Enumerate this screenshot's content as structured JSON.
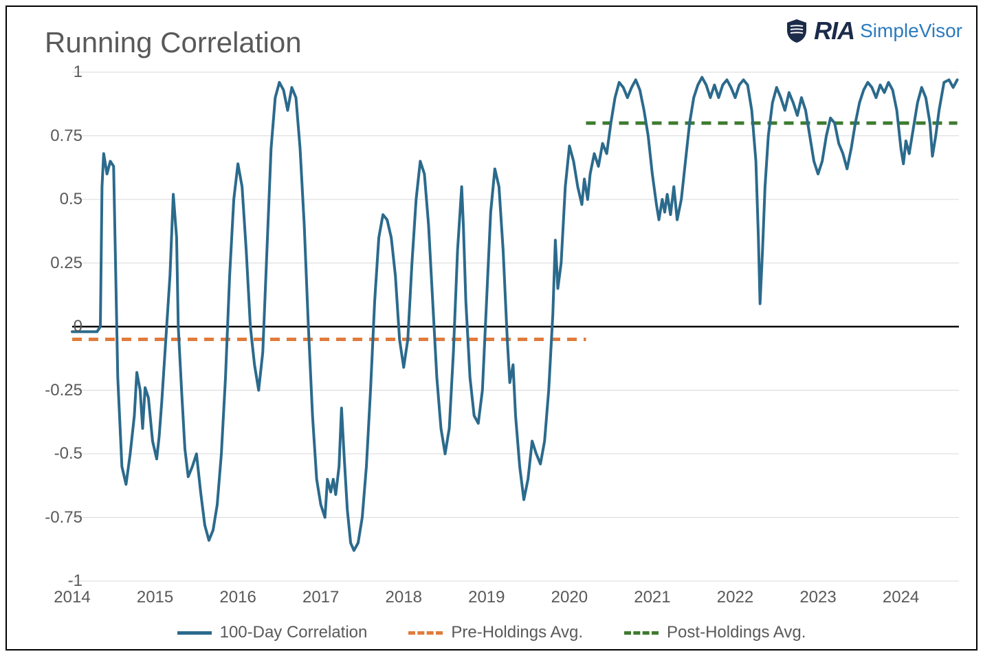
{
  "title": "Running Correlation",
  "logo": {
    "ria": "RIA",
    "simplevisor": "SimpleVisor"
  },
  "chart": {
    "type": "line",
    "background_color": "#ffffff",
    "grid_color": "#d9d9d9",
    "axis_label_color": "#595959",
    "axis_label_fontsize": 24,
    "title_fontsize": 42,
    "ylim": [
      -1,
      1
    ],
    "ytick_step": 0.25,
    "yticks": [
      1,
      0.75,
      0.5,
      0.25,
      0,
      -0.25,
      -0.5,
      -0.75,
      -1
    ],
    "xlim_years": [
      2014,
      2024.7
    ],
    "xticks": [
      2014,
      2015,
      2016,
      2017,
      2018,
      2019,
      2020,
      2021,
      2022,
      2023,
      2024
    ],
    "zero_line_color": "#000000",
    "zero_line_width": 2.5,
    "series": {
      "correlation": {
        "label": "100-Day Correlation",
        "color": "#2b6a8c",
        "line_width": 4,
        "data": [
          [
            2014.0,
            -0.02
          ],
          [
            2014.3,
            -0.02
          ],
          [
            2014.34,
            0.0
          ],
          [
            2014.36,
            0.55
          ],
          [
            2014.38,
            0.68
          ],
          [
            2014.42,
            0.6
          ],
          [
            2014.46,
            0.65
          ],
          [
            2014.5,
            0.63
          ],
          [
            2014.52,
            0.3
          ],
          [
            2014.55,
            -0.2
          ],
          [
            2014.6,
            -0.55
          ],
          [
            2014.65,
            -0.62
          ],
          [
            2014.7,
            -0.5
          ],
          [
            2014.75,
            -0.35
          ],
          [
            2014.78,
            -0.18
          ],
          [
            2014.82,
            -0.25
          ],
          [
            2014.85,
            -0.4
          ],
          [
            2014.88,
            -0.24
          ],
          [
            2014.92,
            -0.28
          ],
          [
            2014.97,
            -0.45
          ],
          [
            2015.02,
            -0.52
          ],
          [
            2015.05,
            -0.43
          ],
          [
            2015.08,
            -0.3
          ],
          [
            2015.12,
            -0.1
          ],
          [
            2015.18,
            0.2
          ],
          [
            2015.22,
            0.52
          ],
          [
            2015.26,
            0.35
          ],
          [
            2015.28,
            0.0
          ],
          [
            2015.32,
            -0.25
          ],
          [
            2015.36,
            -0.48
          ],
          [
            2015.4,
            -0.59
          ],
          [
            2015.45,
            -0.55
          ],
          [
            2015.5,
            -0.5
          ],
          [
            2015.55,
            -0.65
          ],
          [
            2015.6,
            -0.78
          ],
          [
            2015.65,
            -0.84
          ],
          [
            2015.7,
            -0.8
          ],
          [
            2015.75,
            -0.7
          ],
          [
            2015.8,
            -0.5
          ],
          [
            2015.85,
            -0.2
          ],
          [
            2015.9,
            0.2
          ],
          [
            2015.95,
            0.5
          ],
          [
            2016.0,
            0.64
          ],
          [
            2016.05,
            0.55
          ],
          [
            2016.1,
            0.3
          ],
          [
            2016.15,
            0.0
          ],
          [
            2016.2,
            -0.15
          ],
          [
            2016.25,
            -0.25
          ],
          [
            2016.3,
            -0.1
          ],
          [
            2016.35,
            0.3
          ],
          [
            2016.4,
            0.7
          ],
          [
            2016.45,
            0.9
          ],
          [
            2016.5,
            0.96
          ],
          [
            2016.55,
            0.93
          ],
          [
            2016.6,
            0.85
          ],
          [
            2016.65,
            0.94
          ],
          [
            2016.7,
            0.9
          ],
          [
            2016.75,
            0.7
          ],
          [
            2016.8,
            0.4
          ],
          [
            2016.85,
            0.0
          ],
          [
            2016.9,
            -0.35
          ],
          [
            2016.95,
            -0.6
          ],
          [
            2017.0,
            -0.7
          ],
          [
            2017.05,
            -0.75
          ],
          [
            2017.08,
            -0.6
          ],
          [
            2017.12,
            -0.65
          ],
          [
            2017.15,
            -0.6
          ],
          [
            2017.18,
            -0.66
          ],
          [
            2017.22,
            -0.55
          ],
          [
            2017.25,
            -0.32
          ],
          [
            2017.28,
            -0.5
          ],
          [
            2017.32,
            -0.72
          ],
          [
            2017.36,
            -0.85
          ],
          [
            2017.4,
            -0.88
          ],
          [
            2017.45,
            -0.85
          ],
          [
            2017.5,
            -0.75
          ],
          [
            2017.55,
            -0.55
          ],
          [
            2017.6,
            -0.25
          ],
          [
            2017.65,
            0.1
          ],
          [
            2017.7,
            0.35
          ],
          [
            2017.75,
            0.44
          ],
          [
            2017.8,
            0.42
          ],
          [
            2017.85,
            0.35
          ],
          [
            2017.9,
            0.2
          ],
          [
            2017.95,
            -0.05
          ],
          [
            2018.0,
            -0.16
          ],
          [
            2018.05,
            -0.05
          ],
          [
            2018.1,
            0.25
          ],
          [
            2018.15,
            0.5
          ],
          [
            2018.2,
            0.65
          ],
          [
            2018.25,
            0.6
          ],
          [
            2018.3,
            0.4
          ],
          [
            2018.35,
            0.1
          ],
          [
            2018.4,
            -0.2
          ],
          [
            2018.45,
            -0.4
          ],
          [
            2018.5,
            -0.5
          ],
          [
            2018.55,
            -0.4
          ],
          [
            2018.6,
            -0.1
          ],
          [
            2018.65,
            0.3
          ],
          [
            2018.7,
            0.55
          ],
          [
            2018.72,
            0.4
          ],
          [
            2018.75,
            0.1
          ],
          [
            2018.8,
            -0.2
          ],
          [
            2018.85,
            -0.35
          ],
          [
            2018.9,
            -0.38
          ],
          [
            2018.95,
            -0.25
          ],
          [
            2019.0,
            0.1
          ],
          [
            2019.05,
            0.45
          ],
          [
            2019.1,
            0.62
          ],
          [
            2019.15,
            0.55
          ],
          [
            2019.2,
            0.3
          ],
          [
            2019.25,
            -0.05
          ],
          [
            2019.28,
            -0.22
          ],
          [
            2019.32,
            -0.15
          ],
          [
            2019.35,
            -0.35
          ],
          [
            2019.4,
            -0.55
          ],
          [
            2019.45,
            -0.68
          ],
          [
            2019.5,
            -0.6
          ],
          [
            2019.55,
            -0.45
          ],
          [
            2019.6,
            -0.5
          ],
          [
            2019.65,
            -0.54
          ],
          [
            2019.7,
            -0.45
          ],
          [
            2019.75,
            -0.25
          ],
          [
            2019.8,
            0.05
          ],
          [
            2019.83,
            0.34
          ],
          [
            2019.86,
            0.15
          ],
          [
            2019.9,
            0.25
          ],
          [
            2019.95,
            0.55
          ],
          [
            2020.0,
            0.71
          ],
          [
            2020.05,
            0.65
          ],
          [
            2020.1,
            0.55
          ],
          [
            2020.15,
            0.48
          ],
          [
            2020.18,
            0.58
          ],
          [
            2020.22,
            0.5
          ],
          [
            2020.25,
            0.6
          ],
          [
            2020.3,
            0.68
          ],
          [
            2020.35,
            0.63
          ],
          [
            2020.4,
            0.72
          ],
          [
            2020.45,
            0.68
          ],
          [
            2020.5,
            0.8
          ],
          [
            2020.55,
            0.9
          ],
          [
            2020.6,
            0.96
          ],
          [
            2020.65,
            0.94
          ],
          [
            2020.7,
            0.9
          ],
          [
            2020.75,
            0.94
          ],
          [
            2020.8,
            0.97
          ],
          [
            2020.85,
            0.93
          ],
          [
            2020.9,
            0.85
          ],
          [
            2020.95,
            0.75
          ],
          [
            2021.0,
            0.6
          ],
          [
            2021.05,
            0.48
          ],
          [
            2021.08,
            0.42
          ],
          [
            2021.12,
            0.5
          ],
          [
            2021.15,
            0.45
          ],
          [
            2021.18,
            0.52
          ],
          [
            2021.22,
            0.44
          ],
          [
            2021.26,
            0.55
          ],
          [
            2021.3,
            0.42
          ],
          [
            2021.35,
            0.5
          ],
          [
            2021.4,
            0.65
          ],
          [
            2021.45,
            0.8
          ],
          [
            2021.5,
            0.9
          ],
          [
            2021.55,
            0.95
          ],
          [
            2021.6,
            0.98
          ],
          [
            2021.65,
            0.95
          ],
          [
            2021.7,
            0.9
          ],
          [
            2021.75,
            0.95
          ],
          [
            2021.8,
            0.9
          ],
          [
            2021.85,
            0.95
          ],
          [
            2021.9,
            0.97
          ],
          [
            2021.95,
            0.94
          ],
          [
            2022.0,
            0.9
          ],
          [
            2022.05,
            0.95
          ],
          [
            2022.1,
            0.97
          ],
          [
            2022.15,
            0.95
          ],
          [
            2022.2,
            0.85
          ],
          [
            2022.25,
            0.65
          ],
          [
            2022.28,
            0.35
          ],
          [
            2022.3,
            0.09
          ],
          [
            2022.33,
            0.3
          ],
          [
            2022.36,
            0.55
          ],
          [
            2022.4,
            0.75
          ],
          [
            2022.45,
            0.88
          ],
          [
            2022.5,
            0.94
          ],
          [
            2022.55,
            0.9
          ],
          [
            2022.6,
            0.85
          ],
          [
            2022.65,
            0.92
          ],
          [
            2022.7,
            0.88
          ],
          [
            2022.75,
            0.83
          ],
          [
            2022.8,
            0.9
          ],
          [
            2022.85,
            0.85
          ],
          [
            2022.9,
            0.75
          ],
          [
            2022.95,
            0.65
          ],
          [
            2023.0,
            0.6
          ],
          [
            2023.05,
            0.65
          ],
          [
            2023.1,
            0.75
          ],
          [
            2023.15,
            0.82
          ],
          [
            2023.2,
            0.8
          ],
          [
            2023.25,
            0.72
          ],
          [
            2023.3,
            0.68
          ],
          [
            2023.35,
            0.62
          ],
          [
            2023.4,
            0.7
          ],
          [
            2023.45,
            0.8
          ],
          [
            2023.5,
            0.88
          ],
          [
            2023.55,
            0.93
          ],
          [
            2023.6,
            0.96
          ],
          [
            2023.65,
            0.94
          ],
          [
            2023.7,
            0.9
          ],
          [
            2023.75,
            0.95
          ],
          [
            2023.8,
            0.92
          ],
          [
            2023.85,
            0.96
          ],
          [
            2023.9,
            0.93
          ],
          [
            2023.95,
            0.85
          ],
          [
            2024.0,
            0.7
          ],
          [
            2024.03,
            0.64
          ],
          [
            2024.06,
            0.73
          ],
          [
            2024.1,
            0.68
          ],
          [
            2024.15,
            0.78
          ],
          [
            2024.2,
            0.88
          ],
          [
            2024.25,
            0.94
          ],
          [
            2024.3,
            0.9
          ],
          [
            2024.35,
            0.8
          ],
          [
            2024.38,
            0.67
          ],
          [
            2024.42,
            0.75
          ],
          [
            2024.46,
            0.85
          ],
          [
            2024.52,
            0.96
          ],
          [
            2024.58,
            0.97
          ],
          [
            2024.63,
            0.94
          ],
          [
            2024.68,
            0.97
          ]
        ]
      },
      "pre_holdings": {
        "label": "Pre-Holdings Avg.",
        "color": "#e07b3c",
        "line_width": 5,
        "dash": "14 10",
        "x_start": 2014.0,
        "x_end": 2020.2,
        "y": -0.05
      },
      "post_holdings": {
        "label": "Post-Holdings Avg.",
        "color": "#3e7a2f",
        "line_width": 5,
        "dash": "14 10",
        "x_start": 2020.2,
        "x_end": 2024.68,
        "y": 0.8
      }
    },
    "legend": [
      {
        "key": "correlation",
        "swatch": "solid",
        "color": "#2b6a8c",
        "width": 5
      },
      {
        "key": "pre_holdings",
        "swatch": "dashed",
        "color": "#e07b3c",
        "width": 5
      },
      {
        "key": "post_holdings",
        "swatch": "dashed",
        "color": "#3e7a2f",
        "width": 5
      }
    ]
  }
}
